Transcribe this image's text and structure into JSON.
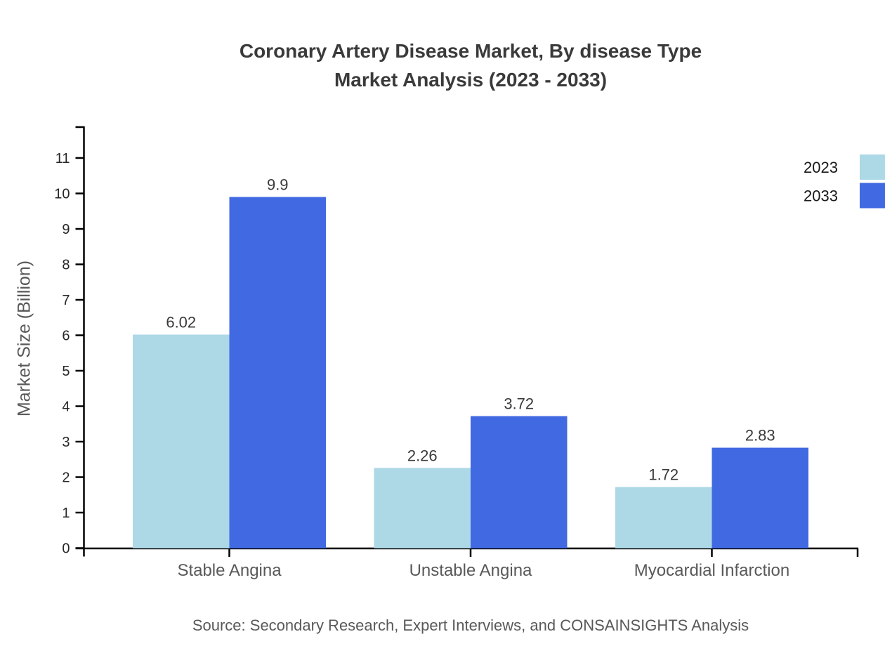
{
  "title": {
    "line1": "Coronary Artery Disease Market, By disease Type",
    "line2": "Market Analysis (2023 - 2033)"
  },
  "source": "Source: Secondary Research, Expert Interviews, and CONSAINSIGHTS Analysis",
  "chart_data": {
    "type": "bar",
    "title": "Coronary Artery Disease Market, By disease Type Market Analysis (2023 - 2033)",
    "categories": [
      "Stable Angina",
      "Unstable Angina",
      "Myocardial Infarction"
    ],
    "series": [
      {
        "name": "2023",
        "color": "#ADD8E6",
        "values": [
          6.02,
          2.26,
          1.72
        ]
      },
      {
        "name": "2033",
        "color": "#4169E1",
        "values": [
          9.9,
          3.72,
          2.83
        ]
      }
    ],
    "xlabel": "",
    "ylabel": "Market Size (Billion)",
    "ylim": [
      0,
      11
    ],
    "yticks": [
      0,
      1,
      2,
      3,
      4,
      5,
      6,
      7,
      8,
      9,
      10,
      11
    ],
    "grid": false,
    "bar_value_labels": true,
    "legend_position": "top-right",
    "axis_color": "#000000"
  }
}
